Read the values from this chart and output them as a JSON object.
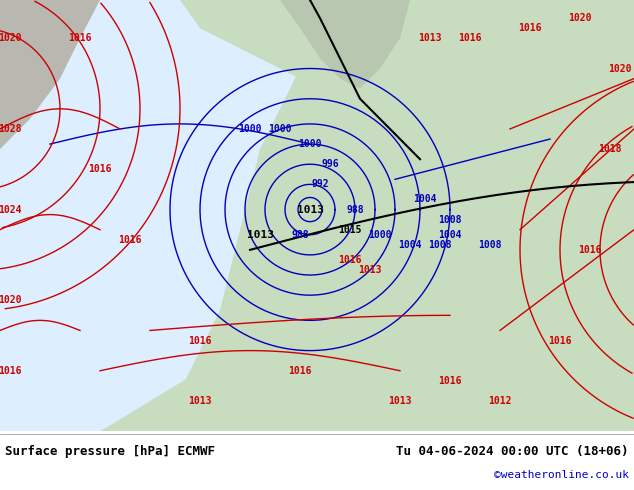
{
  "title_left": "Surface pressure [hPa] ECMWF",
  "title_right": "Tu 04-06-2024 00:00 UTC (18+06)",
  "credit": "©weatheronline.co.uk",
  "bg_color": "#f0f0e8",
  "land_color_north": "#d0d0c8",
  "land_color_south": "#c8dcc0",
  "sea_color": "#e8f0f8",
  "label_color_low": "#0000cc",
  "label_color_high": "#cc0000",
  "label_color_black": "#000000",
  "footer_bg": "#ffffff",
  "fig_width": 6.34,
  "fig_height": 4.9,
  "dpi": 100
}
